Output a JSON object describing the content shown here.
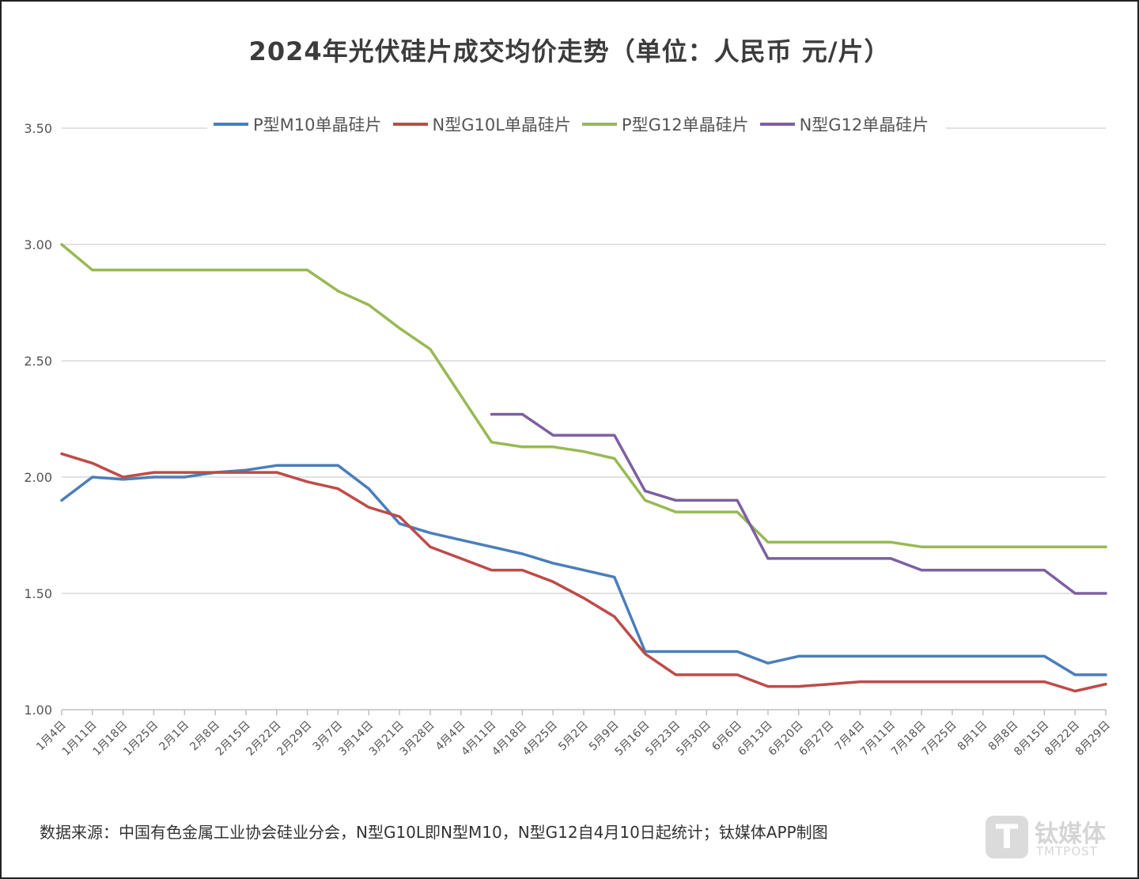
{
  "chart_data": {
    "type": "line",
    "title": "2024年光伏硅片成交均价走势（单位：人民币 元/片）",
    "ylim": [
      1.0,
      3.5
    ],
    "yticks": [
      "1.00",
      "1.50",
      "2.00",
      "2.50",
      "3.00",
      "3.50"
    ],
    "grid": true,
    "legend_position": "top",
    "categories": [
      "1月4日",
      "1月11日",
      "1月18日",
      "1月25日",
      "2月1日",
      "2月8日",
      "2月15日",
      "2月22日",
      "2月29日",
      "3月7日",
      "3月14日",
      "3月21日",
      "3月28日",
      "4月4日",
      "4月11日",
      "4月18日",
      "4月25日",
      "5月2日",
      "5月9日",
      "5月16日",
      "5月23日",
      "5月30日",
      "6月6日",
      "6月13日",
      "6月20日",
      "6月27日",
      "7月4日",
      "7月11日",
      "7月18日",
      "7月25日",
      "8月1日",
      "8月8日",
      "8月15日",
      "8月22日",
      "8月29日"
    ],
    "series": [
      {
        "name": "P型M10单晶硅片",
        "color": "#4a7ebb",
        "values": [
          1.9,
          2.0,
          1.99,
          2.0,
          2.0,
          2.02,
          2.03,
          2.05,
          2.05,
          2.05,
          1.95,
          1.8,
          1.76,
          1.73,
          1.7,
          1.67,
          1.63,
          1.6,
          1.57,
          1.25,
          1.25,
          1.25,
          1.25,
          1.2,
          1.23,
          1.23,
          1.23,
          1.23,
          1.23,
          1.23,
          1.23,
          1.23,
          1.23,
          1.15,
          1.15
        ]
      },
      {
        "name": "N型G10L单晶硅片",
        "color": "#be4b48",
        "values": [
          2.1,
          2.06,
          2.0,
          2.02,
          2.02,
          2.02,
          2.02,
          2.02,
          1.98,
          1.95,
          1.87,
          1.83,
          1.7,
          1.65,
          1.6,
          1.6,
          1.55,
          1.48,
          1.4,
          1.24,
          1.15,
          1.15,
          1.15,
          1.1,
          1.1,
          1.11,
          1.12,
          1.12,
          1.12,
          1.12,
          1.12,
          1.12,
          1.12,
          1.08,
          1.11
        ]
      },
      {
        "name": "P型G12单晶硅片",
        "color": "#98b954",
        "values": [
          3.0,
          2.89,
          2.89,
          2.89,
          2.89,
          2.89,
          2.89,
          2.89,
          2.89,
          2.8,
          2.74,
          2.64,
          2.55,
          2.35,
          2.15,
          2.13,
          2.13,
          2.11,
          2.08,
          1.9,
          1.85,
          1.85,
          1.85,
          1.72,
          1.72,
          1.72,
          1.72,
          1.72,
          1.7,
          1.7,
          1.7,
          1.7,
          1.7,
          1.7,
          1.7
        ]
      },
      {
        "name": "N型G12单晶硅片",
        "color": "#7d60a0",
        "values": [
          null,
          null,
          null,
          null,
          null,
          null,
          null,
          null,
          null,
          null,
          null,
          null,
          null,
          null,
          2.27,
          2.27,
          2.18,
          2.18,
          2.18,
          1.94,
          1.9,
          1.9,
          1.9,
          1.65,
          1.65,
          1.65,
          1.65,
          1.65,
          1.6,
          1.6,
          1.6,
          1.6,
          1.6,
          1.5,
          1.5
        ]
      }
    ]
  },
  "footer": {
    "source": "数据来源：中国有色金属工业协会硅业分会，N型G10L即N型M10，N型G12自4月10日起统计；钛媒体APP制图"
  },
  "watermark": {
    "logo_letter": "T",
    "name_cn": "钛媒体",
    "name_en": "TMTPOST"
  }
}
